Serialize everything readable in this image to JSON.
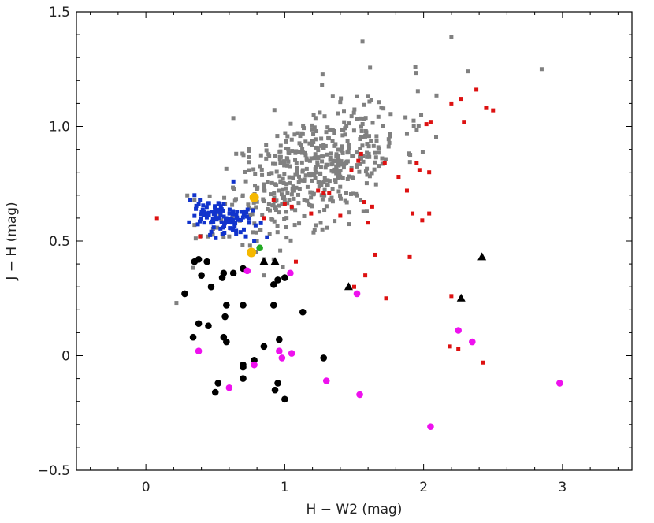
{
  "chart_data": {
    "type": "scatter",
    "title": "",
    "xlabel": "H − W2 (mag)",
    "ylabel": "J − H (mag)",
    "xlim": [
      -0.5,
      3.5
    ],
    "ylim": [
      -0.5,
      1.5
    ],
    "xticks": [
      {
        "value": 0,
        "label": "0"
      },
      {
        "value": 1,
        "label": "1"
      },
      {
        "value": 2,
        "label": "2"
      },
      {
        "value": 3,
        "label": "3"
      }
    ],
    "yticks": [
      {
        "value": -0.5,
        "label": "−0.5"
      },
      {
        "value": 0,
        "label": "0"
      },
      {
        "value": 0.5,
        "label": "0.5"
      },
      {
        "value": 1.0,
        "label": "1.0"
      },
      {
        "value": 1.5,
        "label": "1.5"
      }
    ],
    "series": [
      {
        "name": "gray",
        "color": "#808080",
        "marker": "square",
        "cloud": {
          "n": 520,
          "cx": 1.2,
          "cy": 0.82,
          "sx": 0.32,
          "sy": 0.15,
          "rho": 0.55,
          "seed": 11
        },
        "points": [
          [
            0.22,
            0.23
          ],
          [
            0.35,
            0.57
          ],
          [
            0.45,
            0.52
          ],
          [
            2.85,
            1.25
          ],
          [
            2.2,
            1.39
          ],
          [
            1.56,
            1.37
          ],
          [
            2.32,
            1.24
          ],
          [
            0.55,
            0.53
          ],
          [
            0.6,
            0.52
          ],
          [
            0.85,
            0.35
          ],
          [
            0.92,
            0.42
          ],
          [
            0.35,
            0.68
          ],
          [
            0.75,
            0.48
          ],
          [
            0.8,
            0.5
          ]
        ]
      },
      {
        "name": "blue",
        "color": "#1133cc",
        "marker": "square",
        "cloud": {
          "n": 110,
          "cx": 0.56,
          "cy": 0.6,
          "sx": 0.1,
          "sy": 0.035,
          "rho": -0.3,
          "seed": 7
        },
        "points": [
          [
            0.32,
            0.68
          ],
          [
            0.35,
            0.7
          ],
          [
            0.63,
            0.76
          ],
          [
            0.38,
            0.66
          ],
          [
            0.78,
            0.5
          ],
          [
            0.72,
            0.52
          ],
          [
            0.36,
            0.64
          ],
          [
            0.42,
            0.63
          ],
          [
            0.65,
            0.53
          ]
        ]
      },
      {
        "name": "red",
        "color": "#dd1111",
        "marker": "square",
        "points": [
          [
            0.08,
            0.6
          ],
          [
            0.39,
            0.52
          ],
          [
            0.92,
            0.68
          ],
          [
            1.0,
            0.66
          ],
          [
            1.05,
            0.65
          ],
          [
            1.08,
            0.41
          ],
          [
            1.19,
            0.62
          ],
          [
            1.24,
            0.72
          ],
          [
            1.28,
            0.71
          ],
          [
            1.32,
            0.71
          ],
          [
            1.4,
            0.61
          ],
          [
            1.48,
            0.81
          ],
          [
            1.53,
            0.85
          ],
          [
            1.55,
            0.88
          ],
          [
            1.57,
            0.67
          ],
          [
            1.63,
            0.65
          ],
          [
            1.6,
            0.58
          ],
          [
            1.65,
            0.44
          ],
          [
            1.58,
            0.35
          ],
          [
            1.5,
            0.3
          ],
          [
            1.72,
            0.84
          ],
          [
            1.73,
            0.25
          ],
          [
            1.82,
            0.78
          ],
          [
            1.88,
            0.72
          ],
          [
            1.9,
            0.43
          ],
          [
            1.92,
            0.62
          ],
          [
            1.95,
            0.84
          ],
          [
            1.97,
            0.81
          ],
          [
            1.99,
            0.59
          ],
          [
            2.02,
            1.01
          ],
          [
            2.04,
            0.8
          ],
          [
            2.04,
            0.62
          ],
          [
            2.05,
            1.02
          ],
          [
            2.2,
            1.1
          ],
          [
            2.27,
            1.12
          ],
          [
            2.29,
            1.02
          ],
          [
            2.38,
            1.16
          ],
          [
            2.45,
            1.08
          ],
          [
            2.5,
            1.07
          ],
          [
            2.43,
            -0.03
          ],
          [
            2.2,
            0.26
          ],
          [
            2.19,
            0.04
          ],
          [
            2.25,
            0.03
          ],
          [
            0.85,
            0.6
          ]
        ]
      },
      {
        "name": "black",
        "color": "#000000",
        "marker": "circle",
        "points": [
          [
            0.28,
            0.27
          ],
          [
            0.35,
            0.41
          ],
          [
            0.34,
            0.08
          ],
          [
            0.38,
            0.42
          ],
          [
            0.38,
            0.14
          ],
          [
            0.4,
            0.35
          ],
          [
            0.44,
            0.41
          ],
          [
            0.45,
            0.13
          ],
          [
            0.47,
            0.3
          ],
          [
            0.55,
            0.34
          ],
          [
            0.56,
            0.36
          ],
          [
            0.57,
            0.17
          ],
          [
            0.58,
            0.22
          ],
          [
            0.56,
            0.08
          ],
          [
            0.58,
            0.06
          ],
          [
            0.63,
            0.36
          ],
          [
            0.7,
            0.38
          ],
          [
            0.7,
            0.22
          ],
          [
            0.7,
            -0.04
          ],
          [
            0.7,
            -0.05
          ],
          [
            0.7,
            -0.1
          ],
          [
            0.52,
            -0.12
          ],
          [
            0.5,
            -0.16
          ],
          [
            0.78,
            -0.02
          ],
          [
            0.85,
            0.04
          ],
          [
            0.92,
            0.31
          ],
          [
            0.92,
            0.22
          ],
          [
            0.93,
            -0.15
          ],
          [
            0.95,
            0.33
          ],
          [
            0.95,
            -0.12
          ],
          [
            0.96,
            0.07
          ],
          [
            1.0,
            -0.19
          ],
          [
            1.0,
            0.34
          ],
          [
            1.13,
            0.19
          ],
          [
            1.28,
            -0.01
          ]
        ]
      },
      {
        "name": "magenta",
        "color": "#ee11ee",
        "marker": "circle",
        "points": [
          [
            0.38,
            0.02
          ],
          [
            0.6,
            -0.14
          ],
          [
            0.73,
            0.37
          ],
          [
            0.78,
            -0.04
          ],
          [
            0.96,
            0.02
          ],
          [
            0.98,
            -0.01
          ],
          [
            1.05,
            0.01
          ],
          [
            1.04,
            0.36
          ],
          [
            1.3,
            -0.11
          ],
          [
            1.52,
            0.27
          ],
          [
            1.54,
            -0.17
          ],
          [
            2.05,
            -0.31
          ],
          [
            2.25,
            0.11
          ],
          [
            2.35,
            0.06
          ],
          [
            2.98,
            -0.12
          ]
        ]
      },
      {
        "name": "black-triangles",
        "color": "#000000",
        "marker": "triangle",
        "points": [
          [
            0.85,
            0.41
          ],
          [
            0.93,
            0.41
          ],
          [
            1.46,
            0.3
          ],
          [
            2.27,
            0.25
          ],
          [
            2.42,
            0.43
          ]
        ]
      },
      {
        "name": "orange",
        "color": "#f5b800",
        "marker": "big-circle",
        "points": [
          [
            0.78,
            0.69
          ],
          [
            0.76,
            0.45
          ]
        ]
      },
      {
        "name": "green",
        "color": "#22aa22",
        "marker": "circle",
        "points": [
          [
            0.82,
            0.47
          ]
        ]
      }
    ]
  }
}
